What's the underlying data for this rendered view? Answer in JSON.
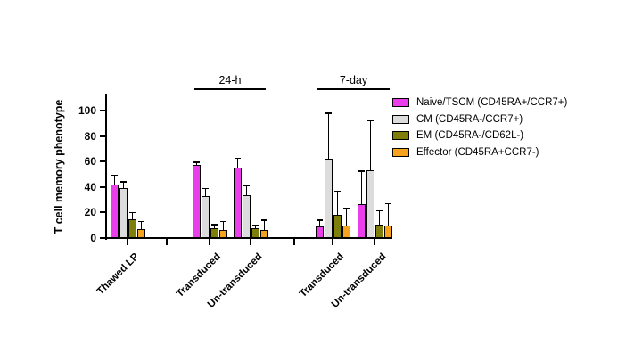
{
  "chart_data": {
    "type": "bar",
    "title": "",
    "ylabel": "T cell memory phenotype",
    "xlabel": "",
    "ylim": [
      0,
      100
    ],
    "yticks": [
      0,
      20,
      40,
      60,
      80,
      100
    ],
    "grid": false,
    "legend_position": "right",
    "error_bars": "sd-upward-only",
    "axis_color": "#000000",
    "categories": [
      "Thawed LP",
      "Transduced",
      "Un-transduced",
      "Transduced",
      "Un-transduced"
    ],
    "sections": [
      {
        "label": "24-h",
        "start_group": 1,
        "end_group": 2
      },
      {
        "label": "7-day",
        "start_group": 3,
        "end_group": 4
      }
    ],
    "series": [
      {
        "name": "Naive/TSCM (CD45RA+/CCR7+)",
        "color": "#E93EE9",
        "values": [
          42,
          57,
          55.5,
          9,
          26.5
        ],
        "errors_up": [
          7,
          2.5,
          7,
          5,
          26
        ]
      },
      {
        "name": "CM (CD45RA-/CCR7+)",
        "color": "#DCDCDC",
        "values": [
          39,
          33,
          33.5,
          62,
          53
        ],
        "errors_up": [
          5,
          6,
          7.5,
          36,
          39
        ]
      },
      {
        "name": "EM (CD45RA-/CD62L-)",
        "color": "#7E7E0B",
        "values": [
          15,
          7.5,
          8,
          18.5,
          10.5
        ],
        "errors_up": [
          5,
          3,
          2,
          18,
          11
        ]
      },
      {
        "name": "Effector (CD45RA+CCR7-)",
        "color": "#F6A21C",
        "values": [
          7,
          6,
          6,
          9.5,
          10
        ],
        "errors_up": [
          6,
          7,
          8,
          13.5,
          17
        ]
      }
    ]
  }
}
